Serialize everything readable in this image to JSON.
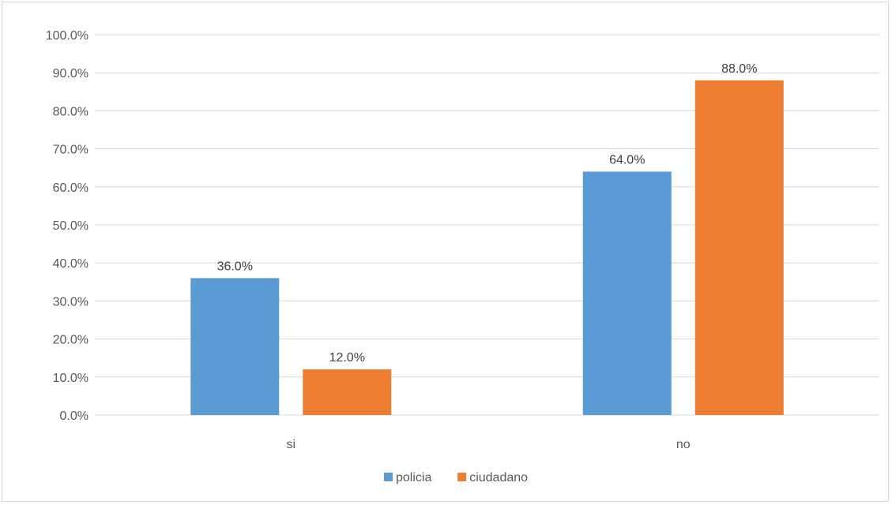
{
  "chart_data": {
    "type": "bar",
    "categories": [
      "si",
      "no"
    ],
    "series": [
      {
        "name": "policia",
        "values": [
          36.0,
          64.0
        ],
        "labels": [
          "36.0%",
          "64.0%"
        ],
        "color": "#5b9bd5"
      },
      {
        "name": "ciudadano",
        "values": [
          12.0,
          88.0
        ],
        "labels": [
          "12.0%",
          "88.0%"
        ],
        "color": "#ed7d31"
      }
    ],
    "yticks": [
      "0.0%",
      "10.0%",
      "20.0%",
      "30.0%",
      "40.0%",
      "50.0%",
      "60.0%",
      "70.0%",
      "80.0%",
      "90.0%",
      "100.0%"
    ],
    "ylim": [
      0,
      100
    ],
    "grid": true,
    "legend_position": "bottom",
    "title": "",
    "xlabel": "",
    "ylabel": ""
  }
}
